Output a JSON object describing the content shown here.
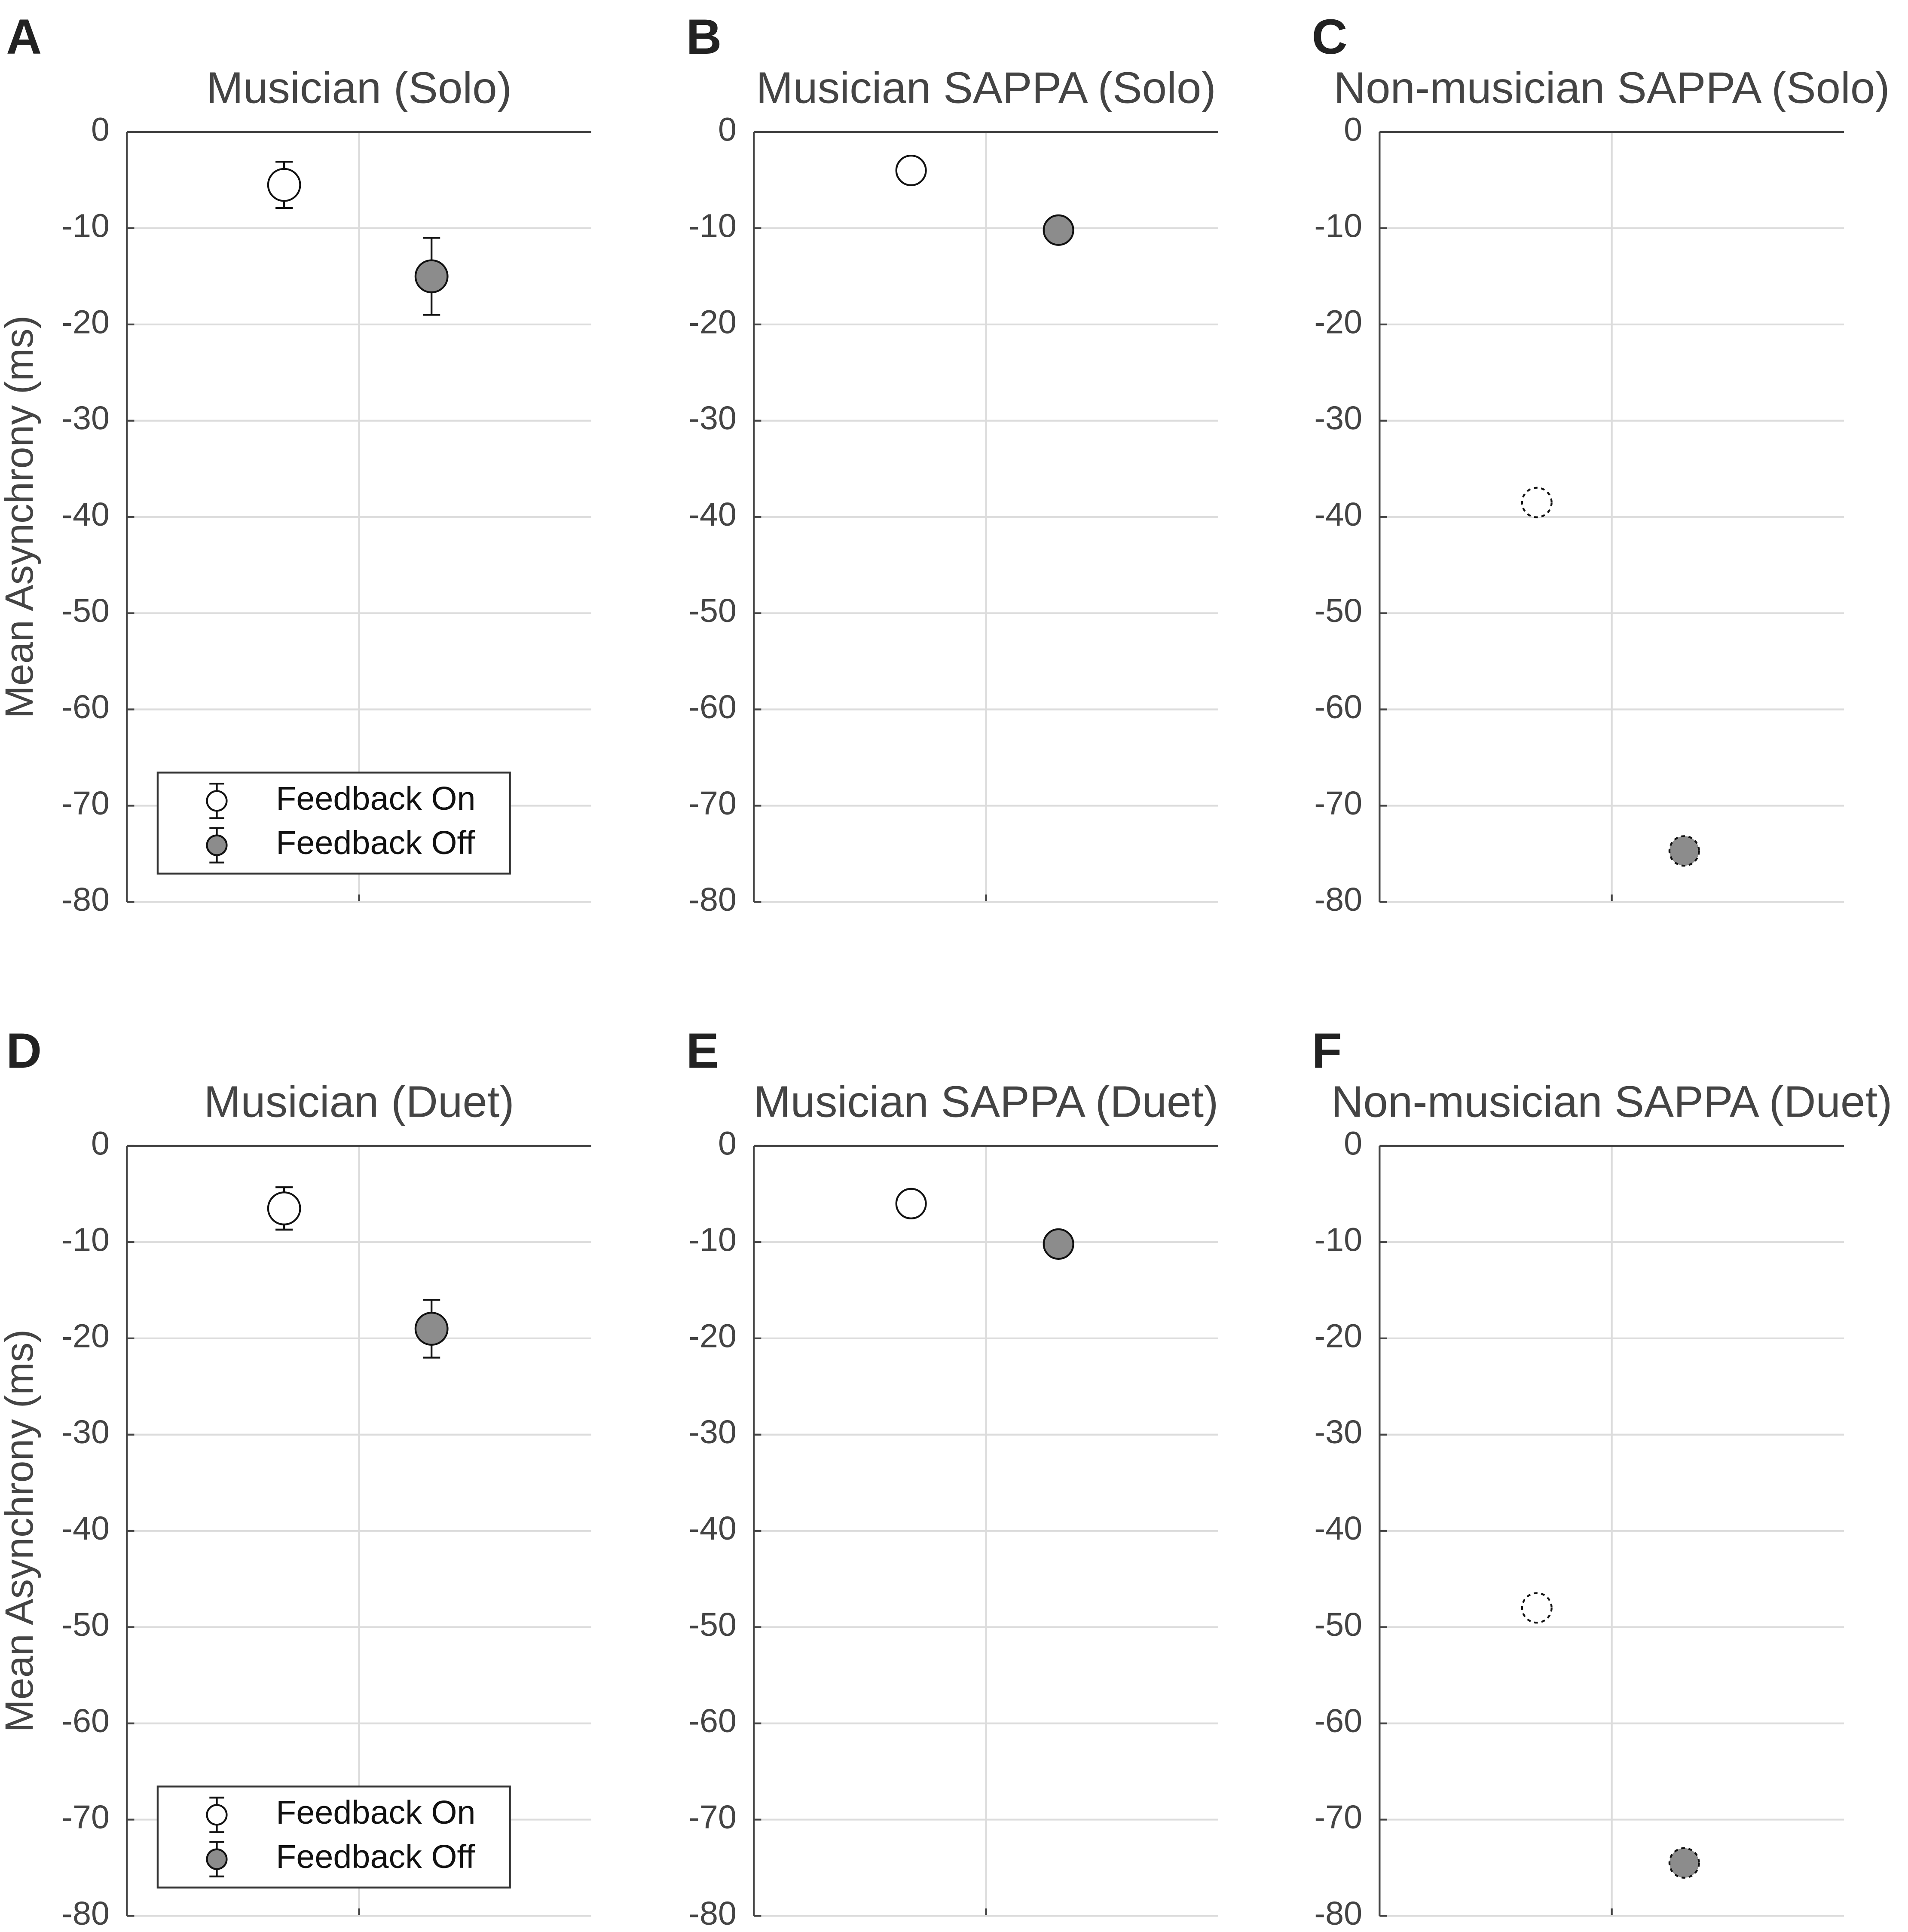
{
  "chart_data": [
    {
      "type": "errorbar",
      "panel": "A",
      "title": "Musician (Solo)",
      "ylabel": "Mean Asynchrony (ms)",
      "ylim": [
        -80,
        0
      ],
      "yticks": [
        0,
        -10,
        -20,
        -30,
        -40,
        -50,
        -60,
        -70,
        -80
      ],
      "grid": true,
      "legend": "lower left",
      "series": [
        {
          "name": "Feedback On",
          "color": "#ffffff",
          "edge": "solid",
          "values": [
            -5.5,
            null
          ],
          "errors": [
            2.4,
            null
          ]
        },
        {
          "name": "Feedback Off",
          "color": "#8c8c8c",
          "edge": "solid",
          "values": [
            null,
            -15
          ],
          "errors": [
            null,
            4
          ]
        }
      ]
    },
    {
      "type": "scatter",
      "panel": "B",
      "title": "Musician SAPPA (Solo)",
      "ylim": [
        -80,
        0
      ],
      "yticks": [
        0,
        -10,
        -20,
        -30,
        -40,
        -50,
        -60,
        -70,
        -80
      ],
      "grid": true,
      "series": [
        {
          "color": "#ffffff",
          "edge": "solid",
          "values": [
            -4,
            null
          ]
        },
        {
          "color": "#8c8c8c",
          "edge": "solid",
          "values": [
            null,
            -10.2
          ]
        }
      ]
    },
    {
      "type": "scatter",
      "panel": "C",
      "title": "Non-musician SAPPA (Solo)",
      "ylim": [
        -80,
        0
      ],
      "yticks": [
        0,
        -10,
        -20,
        -30,
        -40,
        -50,
        -60,
        -70,
        -80
      ],
      "grid": true,
      "series": [
        {
          "color": "#ffffff",
          "edge": "dashed",
          "values": [
            -38.5,
            null
          ]
        },
        {
          "color": "#8c8c8c",
          "edge": "dashed",
          "values": [
            null,
            -74.7
          ]
        }
      ]
    },
    {
      "type": "errorbar",
      "panel": "D",
      "title": "Musician (Duet)",
      "ylabel": "Mean Asynchrony (ms)",
      "ylim": [
        -80,
        0
      ],
      "yticks": [
        0,
        -10,
        -20,
        -30,
        -40,
        -50,
        -60,
        -70,
        -80
      ],
      "grid": true,
      "legend": "lower left",
      "series": [
        {
          "name": "Feedback On",
          "color": "#ffffff",
          "edge": "solid",
          "values": [
            -6.5,
            null
          ],
          "errors": [
            2.2,
            null
          ]
        },
        {
          "name": "Feedback Off",
          "color": "#8c8c8c",
          "edge": "solid",
          "values": [
            null,
            -19
          ],
          "errors": [
            null,
            3
          ]
        }
      ]
    },
    {
      "type": "scatter",
      "panel": "E",
      "title": "Musician SAPPA (Duet)",
      "ylim": [
        -80,
        0
      ],
      "yticks": [
        0,
        -10,
        -20,
        -30,
        -40,
        -50,
        -60,
        -70,
        -80
      ],
      "grid": true,
      "series": [
        {
          "color": "#ffffff",
          "edge": "solid",
          "values": [
            -6,
            null
          ]
        },
        {
          "color": "#8c8c8c",
          "edge": "solid",
          "values": [
            null,
            -10.2
          ]
        }
      ]
    },
    {
      "type": "scatter",
      "panel": "F",
      "title": "Non-musician SAPPA (Duet)",
      "ylim": [
        -80,
        0
      ],
      "yticks": [
        0,
        -10,
        -20,
        -30,
        -40,
        -50,
        -60,
        -70,
        -80
      ],
      "grid": true,
      "series": [
        {
          "color": "#ffffff",
          "edge": "dashed",
          "values": [
            -48,
            null
          ]
        },
        {
          "color": "#8c8c8c",
          "edge": "dashed",
          "values": [
            null,
            -74.5
          ]
        }
      ]
    }
  ]
}
